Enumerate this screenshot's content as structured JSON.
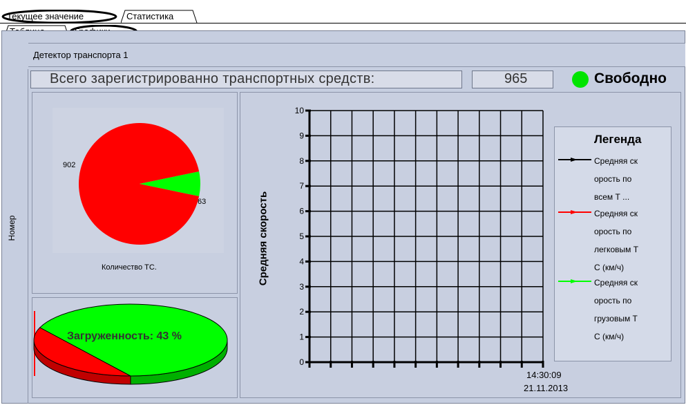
{
  "tabs_top": {
    "current": "Текущее значение",
    "stats": "Статистика"
  },
  "tabs_sub": {
    "table": "Таблица",
    "charts": "Графики"
  },
  "side": {
    "label": "Номер"
  },
  "detector": {
    "title": "Детектор транспорта 1"
  },
  "summary": {
    "label": "Всего зарегистрированно транспортных средств:",
    "count": "965",
    "status": "Свободно",
    "status_color": "#00e400"
  },
  "pie_counts": {
    "caption": "Количество ТС.",
    "label_red": "902",
    "label_green": "63",
    "values": [
      902,
      63
    ],
    "colors": [
      "#ff0000",
      "#00ff00"
    ]
  },
  "load_pie": {
    "label": "Загруженность: 43 %",
    "percent": 43,
    "colors": [
      "#ff0000",
      "#00ff00"
    ]
  },
  "chart_data": {
    "type": "line",
    "ylabel": "Средняя скорость",
    "ylim": [
      0,
      10
    ],
    "y_ticks": [
      "0",
      "1",
      "2",
      "3",
      "4",
      "5",
      "6",
      "7",
      "8",
      "9",
      "10"
    ],
    "x_time": "14:30:09",
    "x_date": "21.11.2013",
    "legend_title": "Легенда",
    "series": [
      {
        "name": "Средняя ск орость по всем Т ...",
        "color": "#000000",
        "values": []
      },
      {
        "name": "Средняя ск орость по легковым Т С (км/ч)",
        "color": "#ff0000",
        "values": []
      },
      {
        "name": "Средняя ск орость по грузовым Т С (км/ч)",
        "color": "#00ff00",
        "values": []
      }
    ],
    "legend_lines": [
      [
        "Средняя ск",
        "орость по",
        "всем Т ..."
      ],
      [
        "Средняя ск",
        "орость по",
        "легковым Т",
        "С (км/ч)"
      ],
      [
        "Средняя ск",
        "орость по",
        "грузовым Т",
        "С (км/ч)"
      ]
    ]
  }
}
